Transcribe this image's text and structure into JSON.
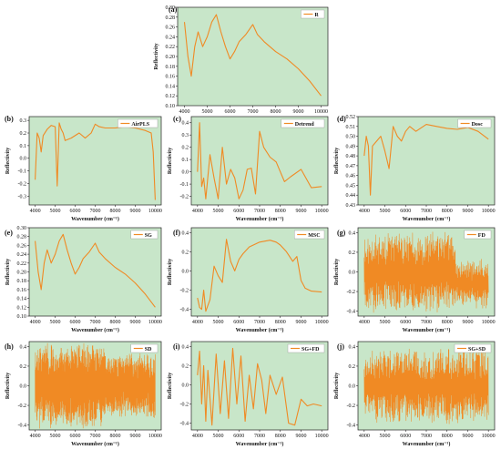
{
  "colors": {
    "plot_bg": "#c8e6c9",
    "line": "#f08a24",
    "frame": "#222222"
  },
  "chart_data": [
    {
      "label": "(a)",
      "type": "line",
      "legend": "R",
      "xlabel": "Wavenumber (cm⁻¹)",
      "ylabel": "Reflectivity",
      "xlim": [
        3700,
        10300
      ],
      "ylim": [
        0.1,
        0.3
      ],
      "xticks": [
        "4000",
        "5000",
        "6000",
        "7000",
        "8000",
        "9000",
        "10000"
      ],
      "yticks": [
        "0.10",
        "0.12",
        "0.14",
        "0.16",
        "0.18",
        "0.20",
        "0.22",
        "0.24",
        "0.26",
        "0.28",
        "0.30"
      ],
      "series": [
        {
          "x": [
            4000,
            4150,
            4300,
            4450,
            4600,
            4800,
            5000,
            5200,
            5400,
            5600,
            5800,
            6000,
            6200,
            6400,
            6700,
            7000,
            7200,
            7500,
            8000,
            8500,
            9000,
            9500,
            10000
          ],
          "y": [
            0.27,
            0.2,
            0.16,
            0.22,
            0.25,
            0.22,
            0.24,
            0.27,
            0.285,
            0.25,
            0.22,
            0.195,
            0.21,
            0.23,
            0.245,
            0.265,
            0.245,
            0.23,
            0.21,
            0.195,
            0.175,
            0.15,
            0.12
          ]
        }
      ]
    },
    {
      "label": "(b)",
      "type": "line",
      "legend": "AirPLS",
      "xlabel": "Wavenumber (cm⁻¹)",
      "ylabel": "Reflectivity",
      "xlim": [
        3700,
        10300
      ],
      "ylim": [
        -0.37,
        0.33
      ],
      "xticks": [
        "4000",
        "5000",
        "6000",
        "7000",
        "8000",
        "9000",
        "10000"
      ],
      "yticks": [
        "-0.3",
        "-0.2",
        "-0.1",
        "0.0",
        "0.1",
        "0.2",
        "0.3"
      ],
      "series": [
        {
          "x": [
            4000,
            4100,
            4200,
            4300,
            4400,
            4600,
            4800,
            5000,
            5100,
            5200,
            5300,
            5400,
            5500,
            5800,
            6200,
            6500,
            6800,
            7000,
            7200,
            7500,
            8000,
            8500,
            9000,
            9500,
            9800,
            9900,
            10000
          ],
          "y": [
            -0.17,
            0.2,
            0.16,
            0.05,
            0.18,
            0.23,
            0.26,
            0.25,
            -0.22,
            0.28,
            0.23,
            0.2,
            0.14,
            0.16,
            0.2,
            0.16,
            0.2,
            0.27,
            0.25,
            0.24,
            0.24,
            0.25,
            0.24,
            0.22,
            0.2,
            0.05,
            -0.33
          ]
        }
      ]
    },
    {
      "label": "(c)",
      "type": "line",
      "legend": "Detrend",
      "xlabel": "Wavenumber (cm⁻¹)",
      "ylabel": "Reflectivity",
      "xlim": [
        3700,
        10300
      ],
      "ylim": [
        -0.27,
        0.45
      ],
      "xticks": [
        "4000",
        "5000",
        "6000",
        "7000",
        "8000",
        "9000",
        "10000"
      ],
      "yticks": [
        "-0.2",
        "-0.1",
        "0.0",
        "0.1",
        "0.2",
        "0.3",
        "0.4"
      ],
      "series": [
        {
          "x": [
            4000,
            4100,
            4200,
            4300,
            4400,
            4600,
            4800,
            5000,
            5200,
            5400,
            5600,
            5800,
            6000,
            6200,
            6400,
            6600,
            6800,
            7000,
            7200,
            7500,
            7800,
            8000,
            8200,
            8500,
            9000,
            9500,
            10000
          ],
          "y": [
            0.0,
            0.4,
            -0.12,
            -0.05,
            -0.22,
            0.14,
            -0.05,
            -0.22,
            0.2,
            -0.1,
            0.02,
            -0.05,
            -0.22,
            -0.15,
            0.02,
            0.03,
            -0.18,
            0.33,
            0.2,
            0.12,
            0.08,
            0.0,
            -0.08,
            -0.04,
            0.02,
            -0.13,
            -0.12
          ]
        }
      ]
    },
    {
      "label": "(d)",
      "type": "line",
      "legend": "Dosc",
      "xlabel": "Wavenumber (cm⁻¹)",
      "ylabel": "Reflectivity",
      "xlim": [
        3700,
        10300
      ],
      "ylim": [
        0.43,
        0.52
      ],
      "xticks": [
        "4000",
        "5000",
        "6000",
        "7000",
        "8000",
        "9000",
        "10000"
      ],
      "yticks": [
        "0.43",
        "0.44",
        "0.45",
        "0.46",
        "0.47",
        "0.48",
        "0.49",
        "0.50",
        "0.51",
        "0.52"
      ],
      "series": [
        {
          "x": [
            4000,
            4100,
            4200,
            4300,
            4400,
            4600,
            4800,
            5000,
            5200,
            5400,
            5600,
            5800,
            6000,
            6200,
            6500,
            7000,
            7500,
            8000,
            8500,
            9000,
            9500,
            10000
          ],
          "y": [
            0.48,
            0.5,
            0.49,
            0.44,
            0.49,
            0.495,
            0.5,
            0.485,
            0.467,
            0.51,
            0.5,
            0.495,
            0.505,
            0.51,
            0.505,
            0.512,
            0.51,
            0.508,
            0.507,
            0.509,
            0.505,
            0.497
          ]
        }
      ]
    },
    {
      "label": "(e)",
      "type": "line",
      "legend": "SG",
      "xlabel": "Wavenumber (cm⁻¹)",
      "ylabel": "Reflectivity",
      "xlim": [
        3700,
        10300
      ],
      "ylim": [
        0.1,
        0.3
      ],
      "xticks": [
        "4000",
        "5000",
        "6000",
        "7000",
        "8000",
        "9000",
        "10000"
      ],
      "yticks": [
        "0.10",
        "0.12",
        "0.14",
        "0.16",
        "0.18",
        "0.20",
        "0.22",
        "0.24",
        "0.26",
        "0.28",
        "0.30"
      ],
      "series": [
        {
          "x": [
            4000,
            4150,
            4300,
            4450,
            4600,
            4800,
            5000,
            5200,
            5400,
            5600,
            5800,
            6000,
            6200,
            6400,
            6700,
            7000,
            7200,
            7500,
            8000,
            8500,
            9000,
            9500,
            10000
          ],
          "y": [
            0.27,
            0.2,
            0.16,
            0.22,
            0.25,
            0.22,
            0.24,
            0.27,
            0.285,
            0.25,
            0.22,
            0.195,
            0.21,
            0.23,
            0.245,
            0.265,
            0.245,
            0.23,
            0.21,
            0.195,
            0.175,
            0.15,
            0.12
          ]
        }
      ]
    },
    {
      "label": "(f)",
      "type": "line",
      "legend": "MSC",
      "xlabel": "Wavenumber (cm⁻¹)",
      "ylabel": "Reflectivity",
      "xlim": [
        3700,
        10300
      ],
      "ylim": [
        -0.47,
        0.45
      ],
      "xticks": [
        "4000",
        "5000",
        "6000",
        "7000",
        "8000",
        "9000",
        "10000"
      ],
      "yticks": [
        "-0.4",
        "-0.2",
        "0.0",
        "0.2",
        "0.4"
      ],
      "series": [
        {
          "x": [
            4000,
            4100,
            4200,
            4300,
            4400,
            4600,
            4800,
            5000,
            5200,
            5400,
            5600,
            5800,
            6000,
            6200,
            6500,
            7000,
            7500,
            7800,
            8000,
            8300,
            8600,
            8800,
            9000,
            9200,
            9500,
            10000
          ],
          "y": [
            -0.28,
            -0.38,
            -0.4,
            -0.2,
            -0.42,
            -0.3,
            0.05,
            -0.05,
            -0.12,
            0.33,
            0.1,
            0.0,
            0.12,
            0.18,
            0.25,
            0.3,
            0.32,
            0.3,
            0.27,
            0.2,
            0.1,
            0.15,
            -0.1,
            -0.18,
            -0.21,
            -0.22
          ]
        }
      ]
    },
    {
      "label": "(g)",
      "type": "line",
      "legend": "FD",
      "xlabel": "Wavenumber (cm⁻¹)",
      "ylabel": "Reflectivity",
      "xlim": [
        3700,
        10300
      ],
      "ylim": [
        -0.45,
        0.45
      ],
      "xticks": [
        "4000",
        "5000",
        "6000",
        "7000",
        "8000",
        "9000",
        "10000"
      ],
      "yticks": [
        "-0.4",
        "-0.2",
        "0.0",
        "0.2",
        "0.4"
      ],
      "series": [
        {
          "x": [],
          "y": []
        }
      ]
    },
    {
      "label": "(h)",
      "type": "line",
      "legend": "SD",
      "xlabel": "Wavenumber (cm⁻¹)",
      "ylabel": "Reflectivity",
      "xlim": [
        3700,
        10300
      ],
      "ylim": [
        -0.45,
        0.45
      ],
      "xticks": [
        "4000",
        "5000",
        "6000",
        "7000",
        "8000",
        "9000",
        "10000"
      ],
      "yticks": [
        "-0.4",
        "-0.2",
        "0.0",
        "0.2",
        "0.4"
      ],
      "series": [
        {
          "x": [],
          "y": []
        }
      ]
    },
    {
      "label": "(i)",
      "type": "line",
      "legend": "SG+FD",
      "xlabel": "Wavenumber (cm⁻¹)",
      "ylabel": "Reflectivity",
      "xlim": [
        3700,
        10300
      ],
      "ylim": [
        -0.47,
        0.45
      ],
      "xticks": [
        "4000",
        "5000",
        "6000",
        "7000",
        "8000",
        "9000",
        "10000"
      ],
      "yticks": [
        "-0.4",
        "-0.2",
        "0.0",
        "0.2",
        "0.4"
      ],
      "series": [
        {
          "x": [
            4000,
            4100,
            4200,
            4300,
            4400,
            4500,
            4700,
            4900,
            5100,
            5300,
            5500,
            5700,
            5900,
            6100,
            6300,
            6500,
            6700,
            6900,
            7100,
            7300,
            7500,
            7800,
            8100,
            8400,
            8700,
            9000,
            9300,
            9600,
            10000
          ],
          "y": [
            0.1,
            0.35,
            -0.2,
            0.2,
            -0.38,
            0.15,
            -0.42,
            0.32,
            -0.3,
            0.25,
            -0.35,
            0.38,
            -0.2,
            0.3,
            -0.38,
            0.1,
            -0.25,
            0.22,
            0.05,
            -0.3,
            0.1,
            -0.1,
            0.08,
            -0.4,
            -0.42,
            -0.15,
            -0.22,
            -0.2,
            -0.22
          ]
        }
      ]
    },
    {
      "label": "(j)",
      "type": "line",
      "legend": "SG+SD",
      "xlabel": "Wavenumber (cm⁻¹)",
      "ylabel": "Reflectivity",
      "xlim": [
        3700,
        10300
      ],
      "ylim": [
        -0.45,
        0.45
      ],
      "xticks": [
        "4000",
        "5000",
        "6000",
        "7000",
        "8000",
        "9000",
        "10000"
      ],
      "yticks": [
        "-0.4",
        "-0.2",
        "0.0",
        "0.2",
        "0.4"
      ],
      "series": [
        {
          "x": [],
          "y": []
        }
      ]
    }
  ]
}
